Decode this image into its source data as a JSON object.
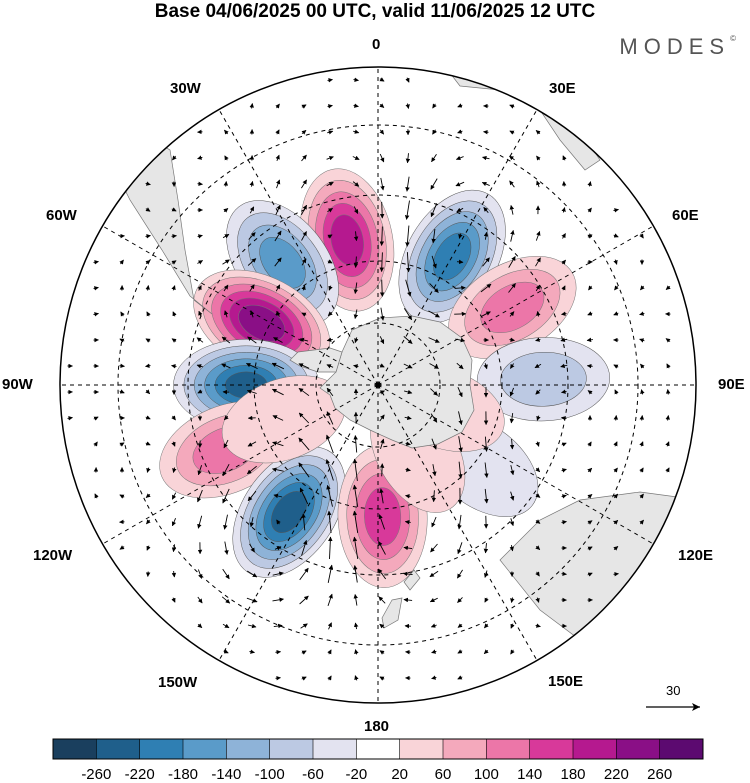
{
  "title": "Base 04/06/2025 00 UTC, valid 11/06/2025 12 UTC",
  "brand": "MODES",
  "brand_mark": "©",
  "longitude_labels": {
    "lon_0": "0",
    "lon_30e": "30E",
    "lon_60e": "60E",
    "lon_90e": "90E",
    "lon_120e": "120E",
    "lon_150e": "150E",
    "lon_180": "180",
    "lon_150w": "150W",
    "lon_120w": "120W",
    "lon_90w": "90W",
    "lon_60w": "60W",
    "lon_30w": "30W"
  },
  "reference_vector": {
    "label": "30"
  },
  "colorbar": {
    "ticks": [
      "-260",
      "-220",
      "-180",
      "-140",
      "-100",
      "-60",
      "-20",
      "20",
      "60",
      "100",
      "140",
      "180",
      "220",
      "260"
    ],
    "colors": [
      "#1a3f5e",
      "#1f5f8b",
      "#2f7fb3",
      "#5a9bc9",
      "#8eb3d8",
      "#bcc9e3",
      "#e3e3f0",
      "#ffffff",
      "#f9d4d8",
      "#f4a9bc",
      "#ec76a8",
      "#d8399a",
      "#b5198f",
      "#8a0f86",
      "#5c0a70"
    ]
  },
  "chart_data": {
    "type": "polar stereographic map",
    "projection": "south polar stereographic",
    "field": "anomaly shading with wind vectors",
    "contour_levels": [
      -260,
      -220,
      -180,
      -140,
      -100,
      -60,
      -20,
      20,
      60,
      100,
      140,
      180,
      220,
      260
    ],
    "anomaly_centers": [
      {
        "lon": -12,
        "lat": -40,
        "value": 200
      },
      {
        "lon": 30,
        "lat": -40,
        "value": -200
      },
      {
        "lon": -38,
        "lat": -38,
        "value": -160
      },
      {
        "lon": -62,
        "lat": -45,
        "value": 250
      },
      {
        "lon": -90,
        "lat": -45,
        "value": -230
      },
      {
        "lon": -113,
        "lat": -35,
        "value": 120
      },
      {
        "lon": -145,
        "lat": -38,
        "value": -240
      },
      {
        "lon": 178,
        "lat": -45,
        "value": 160
      },
      {
        "lon": 60,
        "lat": -38,
        "value": 120
      },
      {
        "lon": 88,
        "lat": -35,
        "value": -80
      },
      {
        "lon": 128,
        "lat": -45,
        "value": -60
      },
      {
        "lon": 150,
        "lat": -62,
        "value": 60
      },
      {
        "lon": 110,
        "lat": -65,
        "value": 50
      },
      {
        "lon": -110,
        "lat": -55,
        "value": 60
      }
    ],
    "reference_vector_value": 30
  }
}
